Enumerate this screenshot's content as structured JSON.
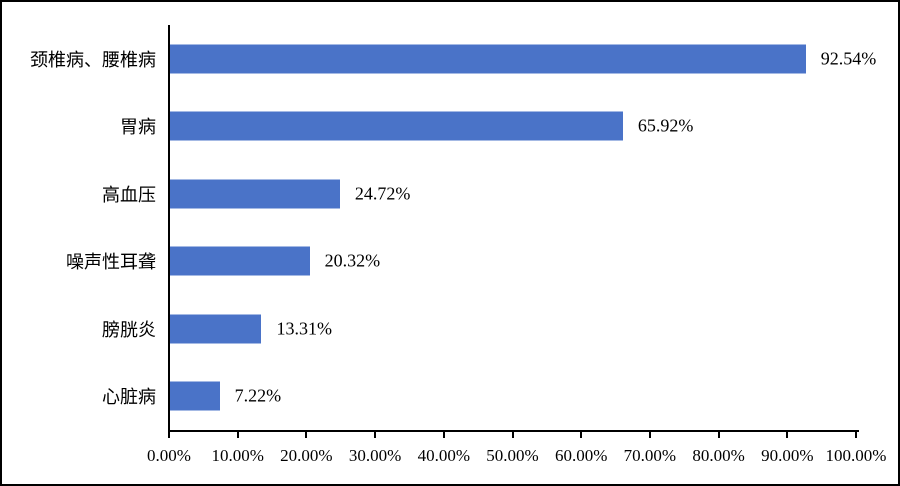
{
  "chart_data": {
    "type": "bar",
    "orientation": "horizontal",
    "title": "",
    "xlabel": "",
    "ylabel": "",
    "categories": [
      "颈椎病、腰椎病",
      "胃病",
      "高血压",
      "噪声性耳聋",
      "膀胱炎",
      "心脏病"
    ],
    "values": [
      92.54,
      65.92,
      24.72,
      20.32,
      13.31,
      7.22
    ],
    "value_labels": [
      "92.54%",
      "65.92%",
      "24.72%",
      "20.32%",
      "13.31%",
      "7.22%"
    ],
    "x_ticks": [
      "0.00%",
      "10.00%",
      "20.00%",
      "30.00%",
      "40.00%",
      "50.00%",
      "60.00%",
      "70.00%",
      "80.00%",
      "90.00%",
      "100.00%"
    ],
    "xlim": [
      0,
      100
    ],
    "grid": "off",
    "legend": "none",
    "bar_color": "#4A73C8",
    "axis_color": "#000000",
    "text_color": "#000000",
    "background_color": "#ffffff"
  }
}
